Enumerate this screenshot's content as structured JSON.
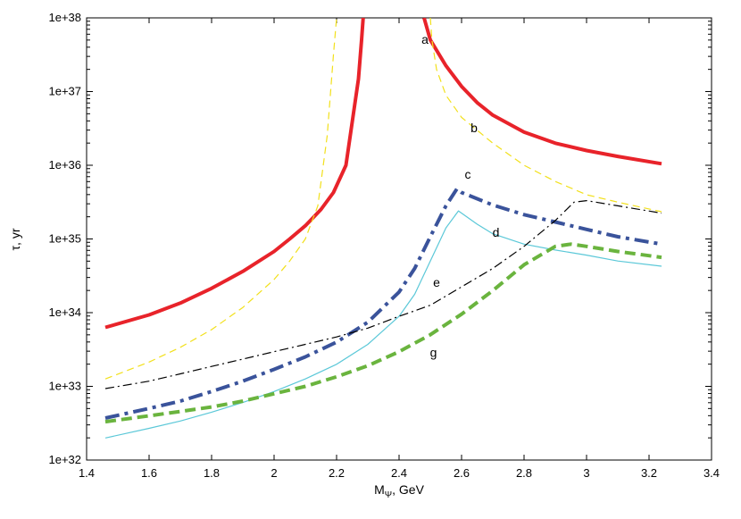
{
  "chart_data": {
    "type": "line",
    "title": "",
    "xlabel": {
      "main": "M",
      "sub": "Ψ",
      "suffix": ", GeV"
    },
    "ylabel": "τ, yr",
    "xlim": [
      1.4,
      3.4
    ],
    "ylim_log10": [
      32,
      38
    ],
    "y_scale": "log",
    "grid": false,
    "x_ticks": [
      1.4,
      1.6,
      1.8,
      2.0,
      2.2,
      2.4,
      2.6,
      2.8,
      3.0,
      3.2,
      3.4
    ],
    "x_tick_labels": [
      "1.4",
      "1.6",
      "1.8",
      "2",
      "2.2",
      "2.4",
      "2.6",
      "2.8",
      "3",
      "3.2",
      "3.4"
    ],
    "y_ticks_log10": [
      32,
      33,
      34,
      35,
      36,
      37,
      38
    ],
    "y_tick_labels": [
      "1e+32",
      "1e+33",
      "1e+34",
      "1e+35",
      "1e+36",
      "1e+37",
      "1e+38"
    ],
    "series": [
      {
        "name": "a",
        "color": "#e8232a",
        "style": "solid",
        "width": 4,
        "label_pos": {
          "x": 2.483,
          "logy": 37.65
        },
        "segments": [
          [
            [
              1.46,
              33.8
            ],
            [
              1.6,
              33.97
            ],
            [
              1.7,
              34.13
            ],
            [
              1.8,
              34.33
            ],
            [
              1.9,
              34.56
            ],
            [
              2.0,
              34.83
            ],
            [
              2.05,
              35.0
            ],
            [
              2.1,
              35.18
            ],
            [
              2.15,
              35.4
            ],
            [
              2.19,
              35.63
            ],
            [
              2.23,
              36.0
            ],
            [
              2.27,
              37.17
            ],
            [
              2.28,
              37.7
            ],
            [
              2.285,
              38.0
            ]
          ],
          [
            [
              2.48,
              38.0
            ],
            [
              2.5,
              37.7
            ],
            [
              2.55,
              37.35
            ],
            [
              2.6,
              37.07
            ],
            [
              2.65,
              36.85
            ],
            [
              2.7,
              36.68
            ],
            [
              2.8,
              36.45
            ],
            [
              2.9,
              36.3
            ],
            [
              3.0,
              36.2
            ],
            [
              3.1,
              36.12
            ],
            [
              3.24,
              36.02
            ]
          ]
        ]
      },
      {
        "name": "b",
        "color": "#f2e01b",
        "style": "dashed",
        "width": 1.2,
        "label_pos": {
          "x": 2.64,
          "logy": 36.45
        },
        "segments": [
          [
            [
              1.46,
              33.1
            ],
            [
              1.6,
              33.33
            ],
            [
              1.7,
              33.53
            ],
            [
              1.8,
              33.77
            ],
            [
              1.9,
              34.07
            ],
            [
              2.0,
              34.45
            ],
            [
              2.05,
              34.7
            ],
            [
              2.1,
              35.0
            ],
            [
              2.14,
              35.45
            ],
            [
              2.17,
              36.4
            ],
            [
              2.19,
              37.5
            ],
            [
              2.2,
              38.0
            ]
          ],
          [
            [
              2.5,
              38.0
            ],
            [
              2.505,
              37.7
            ],
            [
              2.52,
              37.3
            ],
            [
              2.55,
              36.95
            ],
            [
              2.6,
              36.65
            ],
            [
              2.7,
              36.3
            ],
            [
              2.8,
              36.0
            ],
            [
              2.9,
              35.78
            ],
            [
              3.0,
              35.6
            ],
            [
              3.1,
              35.5
            ],
            [
              3.24,
              35.37
            ]
          ]
        ]
      },
      {
        "name": "c",
        "color": "#3a539b",
        "style": "dashdot",
        "width": 4,
        "label_pos": {
          "x": 2.62,
          "logy": 35.82
        },
        "segments": [
          [
            [
              1.46,
              32.57
            ],
            [
              1.6,
              32.7
            ],
            [
              1.7,
              32.8
            ],
            [
              1.8,
              32.93
            ],
            [
              1.9,
              33.07
            ],
            [
              2.0,
              33.23
            ],
            [
              2.1,
              33.4
            ],
            [
              2.2,
              33.6
            ],
            [
              2.3,
              33.87
            ],
            [
              2.4,
              34.28
            ],
            [
              2.45,
              34.6
            ],
            [
              2.5,
              35.03
            ],
            [
              2.55,
              35.45
            ],
            [
              2.585,
              35.68
            ],
            [
              2.6,
              35.63
            ],
            [
              2.7,
              35.46
            ],
            [
              2.8,
              35.33
            ],
            [
              2.9,
              35.23
            ],
            [
              3.0,
              35.13
            ],
            [
              3.1,
              35.03
            ],
            [
              3.24,
              34.93
            ]
          ]
        ]
      },
      {
        "name": "d",
        "color": "#5bc8d8",
        "style": "solid",
        "width": 1.2,
        "label_pos": {
          "x": 2.71,
          "logy": 35.03
        },
        "segments": [
          [
            [
              1.46,
              32.3
            ],
            [
              1.6,
              32.43
            ],
            [
              1.7,
              32.53
            ],
            [
              1.8,
              32.65
            ],
            [
              1.9,
              32.78
            ],
            [
              2.0,
              32.93
            ],
            [
              2.1,
              33.1
            ],
            [
              2.2,
              33.3
            ],
            [
              2.3,
              33.57
            ],
            [
              2.4,
              33.95
            ],
            [
              2.45,
              34.25
            ],
            [
              2.5,
              34.7
            ],
            [
              2.55,
              35.15
            ],
            [
              2.59,
              35.38
            ],
            [
              2.65,
              35.2
            ],
            [
              2.7,
              35.07
            ],
            [
              2.8,
              34.93
            ],
            [
              2.9,
              34.85
            ],
            [
              3.0,
              34.78
            ],
            [
              3.1,
              34.7
            ],
            [
              3.24,
              34.63
            ]
          ]
        ]
      },
      {
        "name": "e",
        "color": "#000000",
        "style": "dashdot",
        "width": 1.2,
        "label_pos": {
          "x": 2.52,
          "logy": 34.35
        },
        "segments": [
          [
            [
              1.46,
              32.97
            ],
            [
              1.6,
              33.07
            ],
            [
              1.7,
              33.17
            ],
            [
              1.8,
              33.27
            ],
            [
              1.9,
              33.37
            ],
            [
              2.0,
              33.47
            ],
            [
              2.1,
              33.57
            ],
            [
              2.2,
              33.67
            ],
            [
              2.3,
              33.79
            ],
            [
              2.4,
              33.95
            ],
            [
              2.5,
              34.1
            ],
            [
              2.6,
              34.35
            ],
            [
              2.7,
              34.6
            ],
            [
              2.8,
              34.9
            ],
            [
              2.9,
              35.25
            ],
            [
              2.96,
              35.5
            ],
            [
              3.0,
              35.52
            ],
            [
              3.1,
              35.45
            ],
            [
              3.24,
              35.35
            ]
          ]
        ]
      },
      {
        "name": "g",
        "color": "#6ab43e",
        "style": "dashed",
        "width": 4,
        "label_pos": {
          "x": 2.51,
          "logy": 33.4
        },
        "segments": [
          [
            [
              1.46,
              32.52
            ],
            [
              1.6,
              32.6
            ],
            [
              1.7,
              32.66
            ],
            [
              1.8,
              32.72
            ],
            [
              1.9,
              32.8
            ],
            [
              2.0,
              32.9
            ],
            [
              2.1,
              33.0
            ],
            [
              2.2,
              33.13
            ],
            [
              2.3,
              33.28
            ],
            [
              2.4,
              33.47
            ],
            [
              2.5,
              33.7
            ],
            [
              2.6,
              33.98
            ],
            [
              2.7,
              34.3
            ],
            [
              2.8,
              34.65
            ],
            [
              2.9,
              34.9
            ],
            [
              2.95,
              34.93
            ],
            [
              3.0,
              34.9
            ],
            [
              3.1,
              34.83
            ],
            [
              3.24,
              34.75
            ]
          ]
        ]
      }
    ]
  }
}
